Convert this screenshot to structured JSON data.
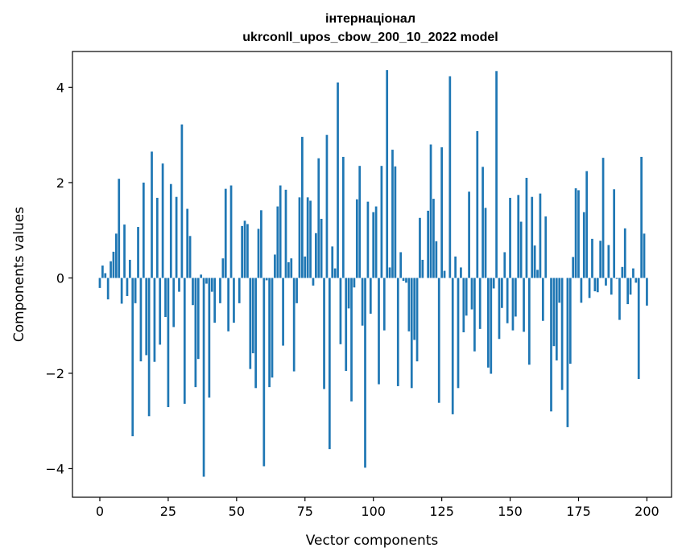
{
  "chart_data": {
    "type": "bar",
    "title": "інтернаціонал",
    "subtitle": "ukrconll_upos_cbow_200_10_2022 model",
    "xlabel": "Vector components",
    "ylabel": "Components values",
    "xlim": [
      -10,
      209
    ],
    "ylim": [
      -4.6,
      4.75
    ],
    "xticks": [
      0,
      25,
      50,
      75,
      100,
      125,
      150,
      175,
      200
    ],
    "yticks": [
      -4,
      -2,
      0,
      2,
      4
    ],
    "grid": false,
    "color": "#1f77b4",
    "bar_width": 0.8,
    "x_start": 0,
    "values": [
      -0.21,
      0.26,
      0.1,
      -0.45,
      0.35,
      0.55,
      0.93,
      2.08,
      -0.54,
      1.12,
      -0.38,
      0.38,
      -3.32,
      -0.53,
      1.07,
      -1.75,
      2.0,
      -1.62,
      -2.9,
      2.65,
      -1.76,
      1.68,
      -1.4,
      2.4,
      -0.82,
      -2.71,
      1.97,
      -1.03,
      1.7,
      -0.29,
      3.22,
      -2.64,
      1.45,
      0.88,
      -0.57,
      -2.29,
      -1.7,
      0.07,
      -4.17,
      -0.12,
      -2.51,
      -0.29,
      -0.94,
      0.0,
      -0.53,
      0.41,
      1.87,
      -1.12,
      1.94,
      -0.94,
      0.0,
      -0.53,
      1.09,
      1.2,
      1.13,
      -1.91,
      -1.58,
      -2.31,
      1.03,
      1.42,
      -3.95,
      -0.05,
      -2.29,
      -2.09,
      0.49,
      1.5,
      1.94,
      -1.42,
      1.85,
      0.33,
      0.41,
      -1.96,
      -0.53,
      1.69,
      2.96,
      0.45,
      1.69,
      1.62,
      -0.16,
      0.94,
      2.51,
      1.24,
      -2.33,
      3.0,
      -3.59,
      0.66,
      0.2,
      4.1,
      -1.39,
      2.54,
      -1.95,
      -0.64,
      -2.59,
      -0.2,
      1.65,
      2.35,
      -1.0,
      -3.98,
      1.6,
      -0.75,
      1.38,
      1.5,
      -2.23,
      2.35,
      -1.1,
      4.36,
      0.22,
      2.69,
      2.34,
      -2.27,
      0.54,
      -0.06,
      -0.1,
      -1.12,
      -2.31,
      -1.3,
      -1.75,
      1.26,
      0.38,
      0.0,
      1.41,
      2.8,
      1.66,
      0.77,
      -2.62,
      2.74,
      0.15,
      0.0,
      4.23,
      -2.86,
      0.45,
      -2.31,
      0.22,
      -1.14,
      -0.79,
      1.81,
      -0.66,
      -1.54,
      3.08,
      -1.07,
      2.33,
      1.47,
      -1.88,
      -2.01,
      -0.22,
      4.34,
      -1.28,
      -0.63,
      0.54,
      -0.95,
      1.68,
      -1.1,
      -0.81,
      1.74,
      1.18,
      -1.13,
      2.1,
      -1.82,
      1.7,
      0.68,
      0.17,
      1.77,
      -0.9,
      1.29,
      0.0,
      -2.8,
      -1.43,
      -1.73,
      -0.52,
      -2.35,
      0.0,
      -3.13,
      -1.8,
      0.44,
      1.88,
      1.84,
      -0.52,
      1.38,
      2.24,
      -0.42,
      0.82,
      -0.28,
      -0.3,
      0.78,
      2.52,
      -0.16,
      0.69,
      -0.35,
      1.86,
      -0.02,
      -0.88,
      0.23,
      1.04,
      -0.55,
      -0.35,
      0.2,
      -0.1,
      -2.12,
      2.54,
      0.93,
      -0.58
    ]
  }
}
